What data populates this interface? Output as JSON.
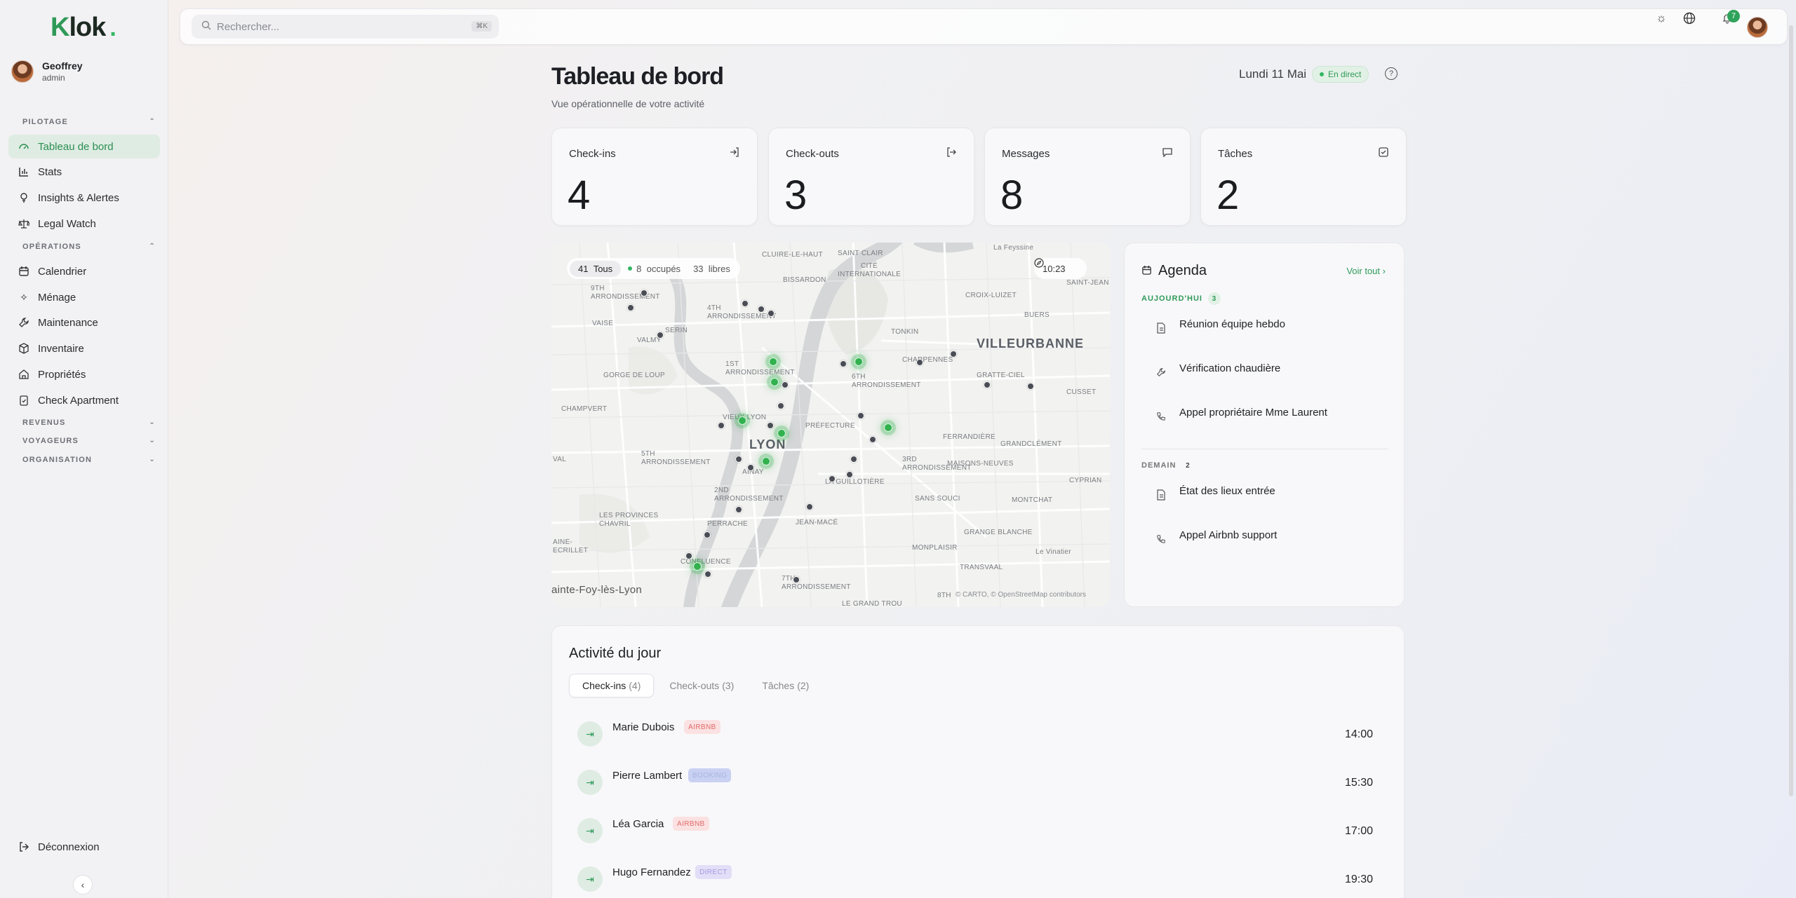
{
  "app": {
    "logo": "Klok"
  },
  "user": {
    "name": "Geoffrey",
    "role": "admin"
  },
  "sidebar": {
    "sections": [
      {
        "label": "PILOTAGE"
      },
      {
        "label": "OPÉRATIONS"
      },
      {
        "label": "REVENUS"
      },
      {
        "label": "VOYAGEURS"
      },
      {
        "label": "ORGANISATION"
      }
    ],
    "items": [
      {
        "label": "Tableau de bord",
        "icon": "gauge-icon"
      },
      {
        "label": "Stats",
        "icon": "bar-chart-icon"
      },
      {
        "label": "Insights & Alertes",
        "icon": "lightbulb-icon"
      },
      {
        "label": "Legal Watch",
        "icon": "scale-icon"
      },
      {
        "label": "Calendrier",
        "icon": "calendar-icon"
      },
      {
        "label": "Ménage",
        "icon": "sparkles-icon"
      },
      {
        "label": "Maintenance",
        "icon": "wrench-icon"
      },
      {
        "label": "Inventaire",
        "icon": "box-icon"
      },
      {
        "label": "Propriétés",
        "icon": "home-icon"
      },
      {
        "label": "Check Apartment",
        "icon": "clipboard-check-icon"
      }
    ],
    "logout": "Déconnexion"
  },
  "search": {
    "placeholder": "Rechercher...",
    "shortcut": "⌘K"
  },
  "notifications": {
    "count": "7"
  },
  "header": {
    "title": "Tableau de bord",
    "subtitle": "Vue opérationnelle de votre activité",
    "date": "Lundi 11 Mai",
    "live": "En direct"
  },
  "stats": [
    {
      "label": "Check-ins",
      "value": "4",
      "icon": "log-in-icon"
    },
    {
      "label": "Check-outs",
      "value": "3",
      "icon": "log-out-icon"
    },
    {
      "label": "Messages",
      "value": "8",
      "icon": "message-icon"
    },
    {
      "label": "Tâches",
      "value": "2",
      "icon": "check-square-icon"
    }
  ],
  "map": {
    "filter_all_count": "41",
    "filter_all_label": "Tous",
    "occupied_count": "8",
    "occupied_label": "occupés",
    "free_count": "33",
    "free_label": "libres",
    "time": "10:23",
    "labels": {
      "city": "LYON",
      "villeurbanne": "VILLEURBANNE",
      "st_foy": "ainte-Foy-lès-Lyon",
      "caluire": "CLUIRE-LE-HAUT",
      "saint_clair": "SAINT CLAIR",
      "cite": "CITÉ INTERNATIONALE",
      "bissardon": "BISSARDON",
      "st_jean": "SAINT-JEAN",
      "croix_luizet": "CROIX-LUIZET",
      "buers": "BUERS",
      "tonkin": "TONKIN",
      "charpennes": "CHARPENNES",
      "gratte_ciel": "GRATTE-CIEL",
      "cusset": "CUSSET",
      "arr9": "9TH ARRONDISSEMENT",
      "arr4": "4TH ARRONDISSEMENT",
      "arr1": "1ST ARRONDISSEMENT",
      "arr6": "6TH ARRONDISSEMENT",
      "arr5": "5TH ARRONDISSEMENT",
      "arr2": "2ND ARRONDISSEMENT",
      "arr3": "3RD ARRONDISSEMENT",
      "arr7": "7TH ARRONDISSEMENT",
      "arr8": "8TH",
      "vaise": "VAISE",
      "serin": "SERIN",
      "valmy": "VALMY",
      "gorge": "GORGE DE LOUP",
      "champvert": "CHAMPVERT",
      "vieux": "VIEUX LYON",
      "prefecture": "PRÉFECTURE",
      "ferrandiere": "FERRANDIÈRE",
      "grandclement": "GRANDCLÉMENT",
      "maisons": "MAISONS-NEUVES",
      "ainay": "AINAY",
      "guillotiere": "LA GUILLOTIÈRE",
      "sans_souci": "SANS SOUCI",
      "montchat": "MONTCHAT",
      "cyprian": "CYPRIAN",
      "provinces": "LES PROVINCES CHAVRIL",
      "perrache": "PERRACHE",
      "jean_mace": "JEAN-MACÉ",
      "grange": "GRANGE BLANCHE",
      "monplaisir": "MONPLAISIR",
      "vinatier": "Le Vinatier",
      "transvaal": "TRANSVAAL",
      "confluence": "CONFLUENCE",
      "grand_trou": "LE GRAND TROU",
      "aine": "AINE-ECRILLET",
      "val": "VAL",
      "peyssone": "La Feyssine"
    },
    "attribution": "© CARTO, © OpenStreetMap contributors"
  },
  "agenda": {
    "title": "Agenda",
    "see_all": "Voir tout",
    "today_label": "AUJOURD'HUI",
    "today_count": "3",
    "tomorrow_label": "DEMAIN",
    "tomorrow_count": "2",
    "today": [
      {
        "title": "Réunion équipe hebdo",
        "icon": "file-icon"
      },
      {
        "title": "Vérification chaudière",
        "icon": "wrench-icon"
      },
      {
        "title": "Appel propriétaire Mme Laurent",
        "icon": "phone-icon"
      }
    ],
    "tomorrow": [
      {
        "title": "État des lieux entrée",
        "icon": "file-icon"
      },
      {
        "title": "Appel Airbnb support",
        "icon": "phone-icon"
      }
    ]
  },
  "activity": {
    "title": "Activité du jour",
    "tabs": [
      {
        "label": "Check-ins",
        "count": "(4)"
      },
      {
        "label": "Check-outs",
        "count": "(3)"
      },
      {
        "label": "Tâches",
        "count": "(2)"
      }
    ],
    "rows": [
      {
        "name": "Marie Dubois",
        "source": "AIRBNB",
        "time": "14:00"
      },
      {
        "name": "Pierre Lambert",
        "source": "BOOKING",
        "time": "15:30"
      },
      {
        "name": "Léa Garcia",
        "source": "AIRBNB",
        "time": "17:00"
      },
      {
        "name": "Hugo Fernandez",
        "source": "DIRECT",
        "time": "19:30"
      }
    ]
  }
}
